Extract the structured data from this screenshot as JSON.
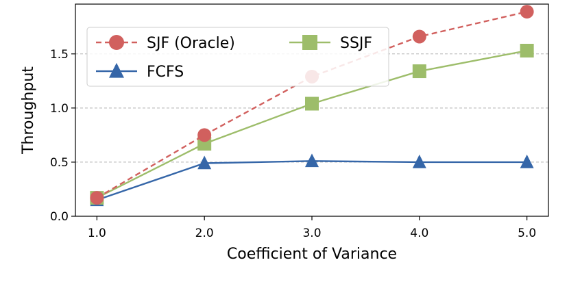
{
  "chart_data": {
    "type": "line",
    "title": "",
    "xlabel": "Coefficient of Variance",
    "ylabel": "Throughput",
    "x": [
      1.0,
      2.0,
      3.0,
      4.0,
      5.0
    ],
    "x_tick_labels": [
      "1.0",
      "2.0",
      "3.0",
      "4.0",
      "5.0"
    ],
    "y_ticks": [
      0.0,
      0.5,
      1.0,
      1.5
    ],
    "y_tick_labels": [
      "0.0",
      "0.5",
      "1.0",
      "1.5"
    ],
    "xlim": [
      0.8,
      5.2
    ],
    "ylim": [
      0.0,
      1.96
    ],
    "grid": "horizontal dashed",
    "legend_position": "top-left",
    "series": [
      {
        "name": "SJF (Oracle)",
        "values": [
          0.17,
          0.75,
          1.29,
          1.66,
          1.89
        ],
        "color": "#d1605e",
        "marker": "circle",
        "linestyle": "dashed"
      },
      {
        "name": "FCFS",
        "values": [
          0.15,
          0.49,
          0.51,
          0.5,
          0.5
        ],
        "color": "#3566a8",
        "marker": "triangle",
        "linestyle": "solid"
      },
      {
        "name": "SSJF",
        "values": [
          0.17,
          0.67,
          1.04,
          1.34,
          1.53
        ],
        "color": "#9dbd6a",
        "marker": "square",
        "linestyle": "solid"
      }
    ]
  }
}
